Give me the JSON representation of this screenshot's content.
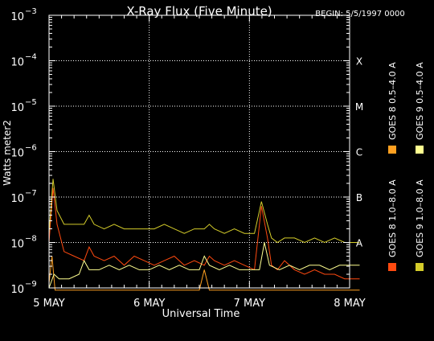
{
  "chart_data": {
    "type": "line",
    "title": "X-Ray Flux (Five Minute)",
    "begin_label": "BEGIN: 5/5/1997 0000",
    "xlabel": "Universal Time",
    "ylabel": "Watts meter2",
    "xlim": [
      0,
      3
    ],
    "x_tick_labels": [
      "5 MAY",
      "6 MAY",
      "7 MAY",
      "8 MAY"
    ],
    "x_ticks": [
      0,
      1,
      2,
      3
    ],
    "ylog_exp_range": [
      -9,
      -3
    ],
    "y_tick_labels": [
      {
        "exp": -3,
        "label": "10",
        "sup": "−3"
      },
      {
        "exp": -4,
        "label": "10",
        "sup": "−4"
      },
      {
        "exp": -5,
        "label": "10",
        "sup": "−5"
      },
      {
        "exp": -6,
        "label": "10",
        "sup": "−6"
      },
      {
        "exp": -7,
        "label": "10",
        "sup": "−7"
      },
      {
        "exp": -8,
        "label": "10",
        "sup": "−8"
      },
      {
        "exp": -9,
        "label": "10",
        "sup": "−9"
      }
    ],
    "class_labels": [
      {
        "label": "X",
        "exp": -4
      },
      {
        "label": "M",
        "exp": -5
      },
      {
        "label": "C",
        "exp": -6
      },
      {
        "label": "B",
        "exp": -7
      },
      {
        "label": "A",
        "exp": -8
      }
    ],
    "grid": "dotted",
    "legend_placement": "right",
    "series": [
      {
        "name": "GOES 8 1.0–8.0 A",
        "color": "#ff4a10",
        "x": [
          0.0,
          0.04,
          0.08,
          0.15,
          0.25,
          0.35,
          0.4,
          0.45,
          0.55,
          0.65,
          0.75,
          0.85,
          0.95,
          1.05,
          1.15,
          1.25,
          1.35,
          1.45,
          1.55,
          1.6,
          1.65,
          1.75,
          1.85,
          1.95,
          2.05,
          2.12,
          2.18,
          2.22,
          2.28,
          2.35,
          2.45,
          2.55,
          2.65,
          2.75,
          2.85,
          2.95,
          3.05,
          3.1
        ],
        "exp": [
          -8.0,
          -6.8,
          -7.6,
          -8.2,
          -8.3,
          -8.4,
          -8.1,
          -8.3,
          -8.4,
          -8.3,
          -8.5,
          -8.3,
          -8.4,
          -8.5,
          -8.4,
          -8.3,
          -8.5,
          -8.4,
          -8.5,
          -8.3,
          -8.4,
          -8.5,
          -8.4,
          -8.5,
          -8.6,
          -7.2,
          -7.9,
          -8.5,
          -8.6,
          -8.4,
          -8.6,
          -8.7,
          -8.6,
          -8.7,
          -8.7,
          -8.8,
          -8.8,
          -8.8
        ]
      },
      {
        "name": "GOES 8 0.5–4.0 A",
        "color": "#ffa020",
        "x": [
          0.0,
          0.03,
          0.06,
          0.12,
          0.2,
          0.3,
          0.4,
          0.5,
          0.6,
          0.7,
          0.8,
          0.9,
          1.0,
          1.1,
          1.2,
          1.3,
          1.4,
          1.5,
          1.55,
          1.6,
          1.7,
          1.8,
          1.9,
          2.0,
          2.1,
          2.2,
          2.3,
          2.4,
          2.5,
          2.6,
          2.7,
          2.8,
          2.9,
          3.0,
          3.1
        ],
        "exp": [
          -8.9,
          -8.3,
          -9.1,
          -9.4,
          -9.5,
          -9.4,
          -9.6,
          -9.5,
          -9.6,
          -9.5,
          -9.6,
          -9.5,
          -9.6,
          -9.5,
          -9.6,
          -9.5,
          -9.6,
          -9.5,
          -8.6,
          -9.6,
          -9.5,
          -9.6,
          -9.5,
          -9.6,
          -9.5,
          -9.6,
          -9.5,
          -9.6,
          -9.5,
          -9.6,
          -9.5,
          -9.6,
          -9.5,
          -9.6,
          -9.5
        ]
      },
      {
        "name": "GOES 9 1.0–8.0 A",
        "color": "#d4cc2a",
        "x": [
          0.0,
          0.04,
          0.08,
          0.15,
          0.25,
          0.35,
          0.4,
          0.45,
          0.55,
          0.65,
          0.75,
          0.85,
          0.95,
          1.05,
          1.15,
          1.25,
          1.35,
          1.45,
          1.55,
          1.6,
          1.65,
          1.75,
          1.85,
          1.95,
          2.05,
          2.12,
          2.18,
          2.22,
          2.28,
          2.35,
          2.45,
          2.55,
          2.65,
          2.75,
          2.85,
          2.95,
          3.05,
          3.1
        ],
        "exp": [
          -7.8,
          -6.6,
          -7.3,
          -7.6,
          -7.6,
          -7.6,
          -7.4,
          -7.6,
          -7.7,
          -7.6,
          -7.7,
          -7.7,
          -7.7,
          -7.7,
          -7.6,
          -7.7,
          -7.8,
          -7.7,
          -7.7,
          -7.6,
          -7.7,
          -7.8,
          -7.7,
          -7.8,
          -7.8,
          -7.1,
          -7.6,
          -7.9,
          -8.0,
          -7.9,
          -7.9,
          -8.0,
          -7.9,
          -8.0,
          -7.9,
          -8.0,
          -8.0,
          -8.0
        ]
      },
      {
        "name": "GOES 9 0.5–4.0 A",
        "color": "#ffff90",
        "x": [
          0.0,
          0.05,
          0.1,
          0.2,
          0.3,
          0.35,
          0.4,
          0.5,
          0.6,
          0.7,
          0.8,
          0.9,
          1.0,
          1.1,
          1.2,
          1.3,
          1.4,
          1.5,
          1.55,
          1.6,
          1.7,
          1.8,
          1.9,
          2.0,
          2.1,
          2.15,
          2.2,
          2.3,
          2.4,
          2.5,
          2.6,
          2.7,
          2.8,
          2.9,
          3.0,
          3.1
        ],
        "exp": [
          -9.0,
          -8.7,
          -8.8,
          -8.8,
          -8.7,
          -8.4,
          -8.6,
          -8.6,
          -8.5,
          -8.6,
          -8.5,
          -8.6,
          -8.6,
          -8.5,
          -8.6,
          -8.5,
          -8.6,
          -8.6,
          -8.3,
          -8.5,
          -8.6,
          -8.5,
          -8.6,
          -8.6,
          -8.6,
          -8.0,
          -8.5,
          -8.6,
          -8.5,
          -8.6,
          -8.5,
          -8.5,
          -8.6,
          -8.5,
          -8.5,
          -8.5
        ]
      }
    ]
  }
}
